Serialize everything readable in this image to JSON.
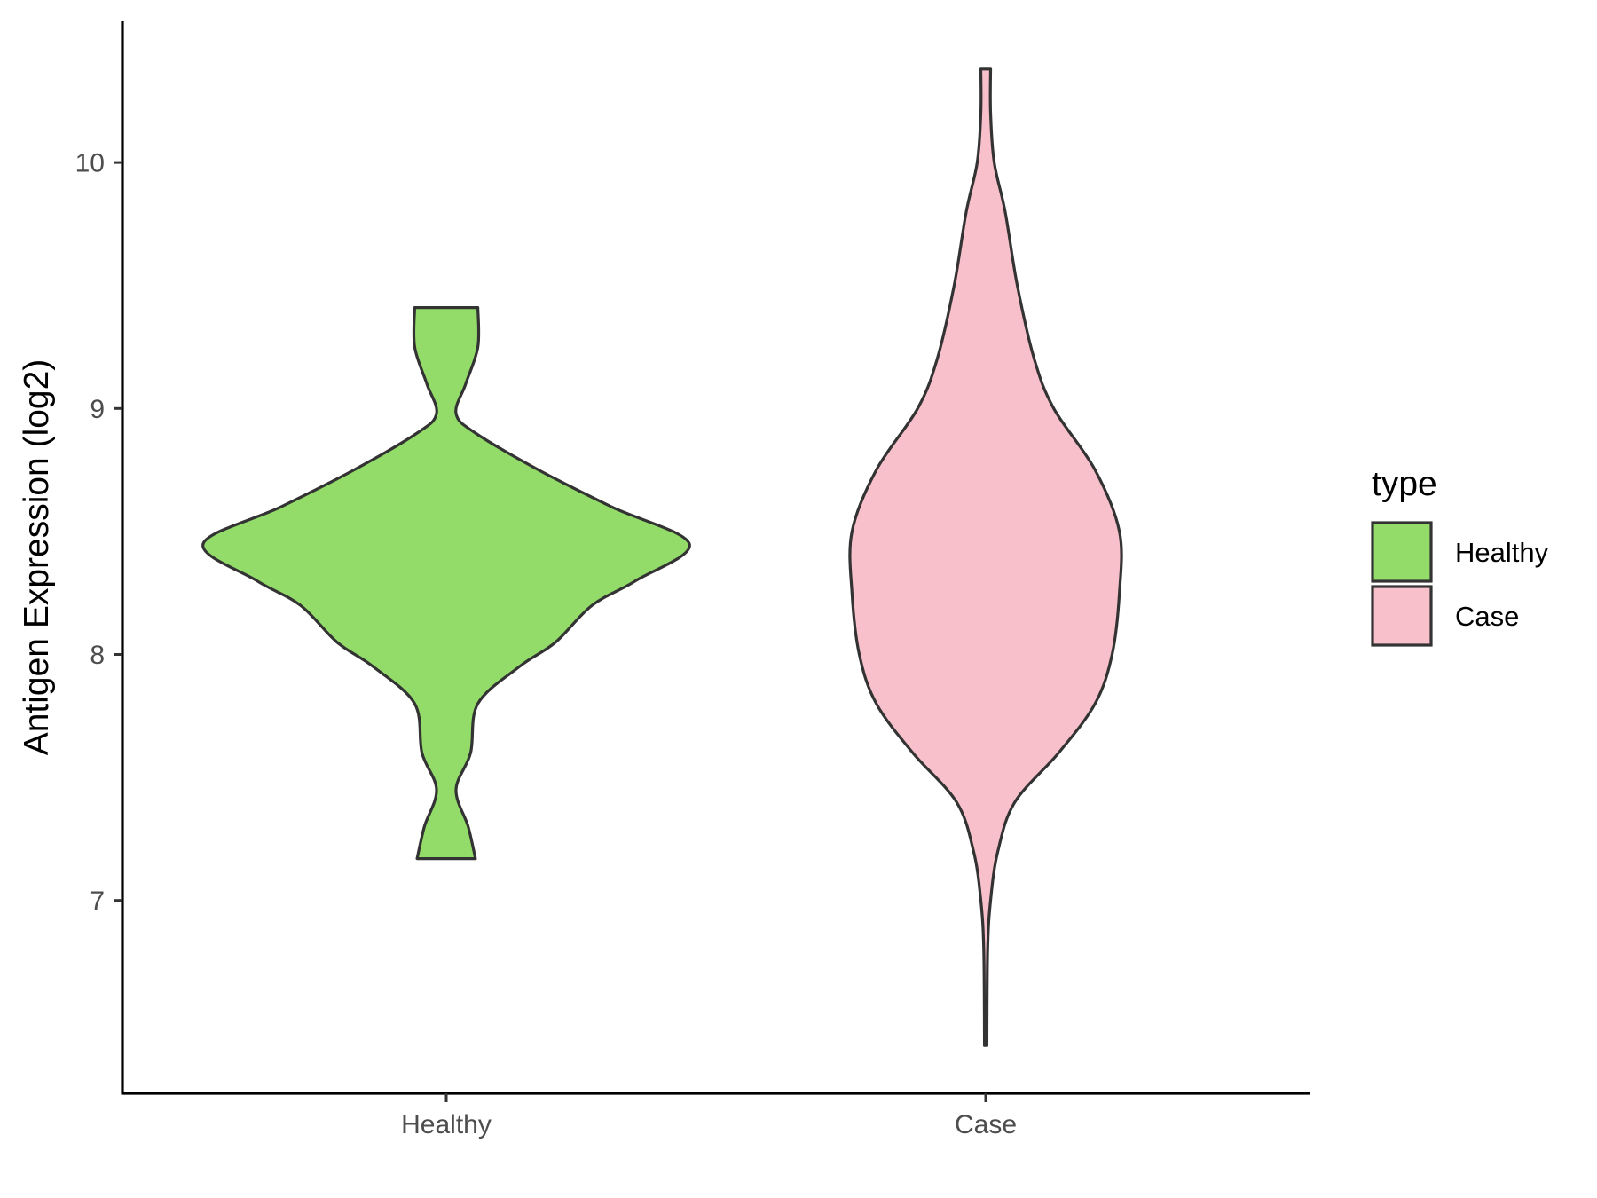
{
  "chart_data": {
    "type": "violin",
    "title": "",
    "xlabel": "",
    "ylabel": "Antigen Expression (log2)",
    "categories": [
      "Healthy",
      "Case"
    ],
    "ylim": [
      6.3,
      10.6
    ],
    "y_ticks": [
      7,
      8,
      9,
      10
    ],
    "y_tick_labels": [
      "7",
      "8",
      "9",
      "10"
    ],
    "grid": false,
    "legend": {
      "title": "type",
      "position": "right",
      "entries": [
        {
          "label": "Healthy",
          "color": "#93dc6a"
        },
        {
          "label": "Case",
          "color": "#f8c0cb"
        }
      ]
    },
    "series": [
      {
        "category": "Healthy",
        "color": "#93dc6a",
        "y_min": 7.17,
        "y_max": 9.41,
        "density_profile": [
          [
            7.17,
            0.12
          ],
          [
            7.3,
            0.09
          ],
          [
            7.45,
            0.04
          ],
          [
            7.6,
            0.1
          ],
          [
            7.8,
            0.13
          ],
          [
            7.95,
            0.3
          ],
          [
            8.05,
            0.45
          ],
          [
            8.2,
            0.6
          ],
          [
            8.3,
            0.78
          ],
          [
            8.45,
            1.0
          ],
          [
            8.6,
            0.68
          ],
          [
            8.75,
            0.38
          ],
          [
            8.9,
            0.12
          ],
          [
            8.98,
            0.04
          ],
          [
            9.1,
            0.08
          ],
          [
            9.25,
            0.13
          ],
          [
            9.41,
            0.13
          ]
        ]
      },
      {
        "category": "Case",
        "color": "#f8c0cb",
        "y_min": 6.41,
        "y_max": 10.38,
        "density_profile": [
          [
            6.41,
            0.005
          ],
          [
            6.8,
            0.008
          ],
          [
            7.0,
            0.02
          ],
          [
            7.2,
            0.05
          ],
          [
            7.4,
            0.12
          ],
          [
            7.6,
            0.3
          ],
          [
            7.8,
            0.45
          ],
          [
            8.0,
            0.52
          ],
          [
            8.25,
            0.55
          ],
          [
            8.5,
            0.55
          ],
          [
            8.75,
            0.45
          ],
          [
            9.0,
            0.28
          ],
          [
            9.2,
            0.2
          ],
          [
            9.5,
            0.13
          ],
          [
            9.8,
            0.08
          ],
          [
            10.0,
            0.035
          ],
          [
            10.2,
            0.02
          ],
          [
            10.38,
            0.02
          ]
        ]
      }
    ]
  }
}
